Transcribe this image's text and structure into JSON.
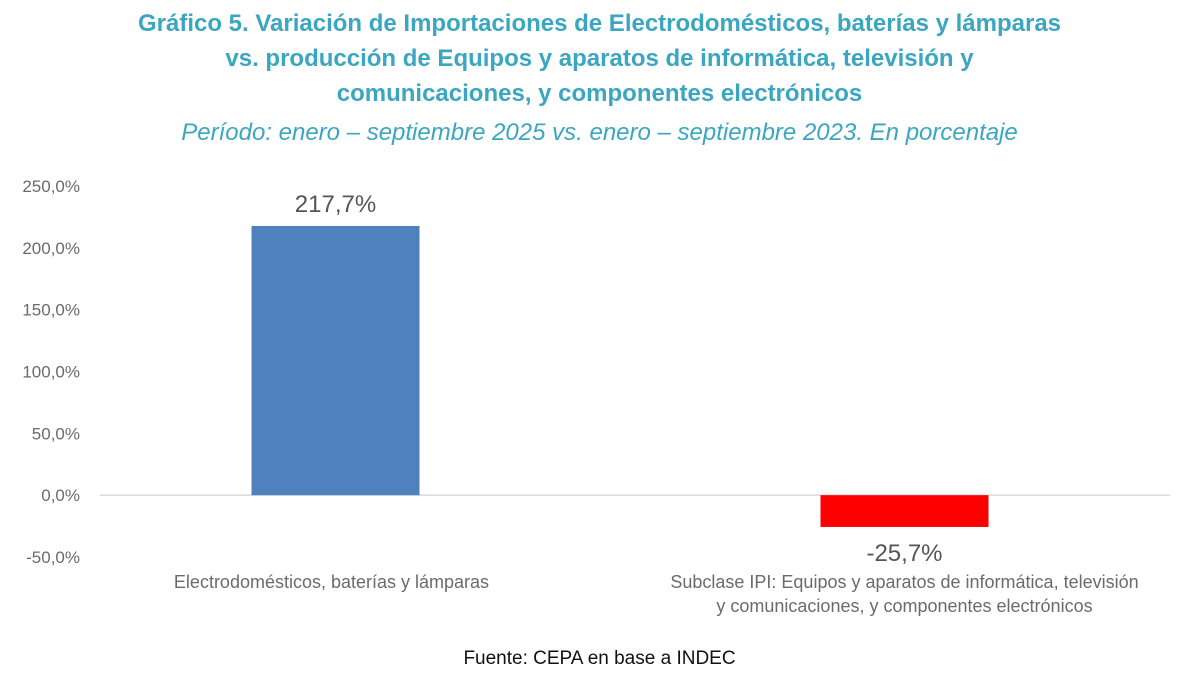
{
  "header": {
    "title_lines": [
      "Gráfico 5. Variación de Importaciones de Electrodomésticos, baterías y lámparas",
      "vs. producción de Equipos y aparatos de informática, televisión y",
      "comunicaciones, y componentes electrónicos"
    ],
    "subtitle": "Período: enero – septiembre 2025 vs. enero – septiembre 2023. En porcentaje"
  },
  "footer": {
    "source": "Fuente: CEPA en base a INDEC"
  },
  "chart_data": {
    "type": "bar",
    "categories": [
      [
        "Electrodomésticos, baterías y lámparas"
      ],
      [
        "Subclase IPI: Equipos y aparatos de informática, televisión",
        "y comunicaciones, y componentes electrónicos"
      ]
    ],
    "values": [
      217.7,
      -25.7
    ],
    "data_labels": [
      "217,7%",
      "-25,7%"
    ],
    "colors": [
      "#4f81bd",
      "#ff0000"
    ],
    "ylim": [
      -50,
      250
    ],
    "yticks": [
      250,
      200,
      150,
      100,
      50,
      0,
      -50
    ],
    "ytick_labels": [
      "250,0%",
      "200,0%",
      "150,0%",
      "100,0%",
      "50,0%",
      "0,0%",
      "-50,0%"
    ],
    "gridlines": false,
    "legend": "none"
  }
}
